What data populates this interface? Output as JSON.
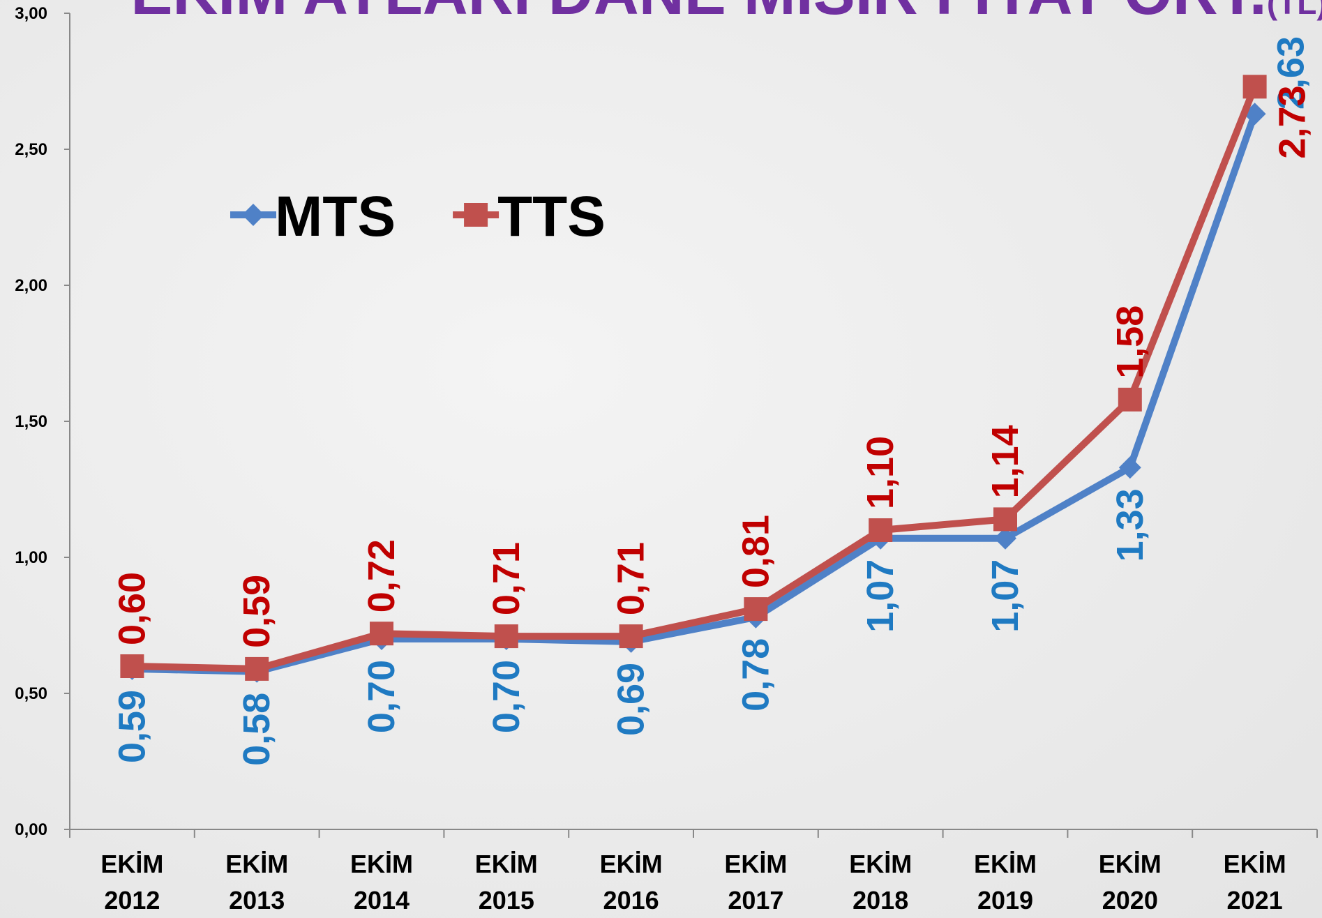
{
  "chart_data": {
    "type": "line",
    "title": "EKİM AYLARI DANE MISIR FİYAT ORT.",
    "title_unit": "(TL)",
    "categories": [
      "EKİM 2012",
      "EKİM 2013",
      "EKİM 2014",
      "EKİM 2015",
      "EKİM 2016",
      "EKİM 2017",
      "EKİM 2018",
      "EKİM 2019",
      "EKİM 2020",
      "EKİM 2021"
    ],
    "series": [
      {
        "name": "MTS",
        "color": "#4f81c7",
        "label_color": "#1f7ac2",
        "marker": "diamond",
        "values": [
          0.59,
          0.58,
          0.7,
          0.7,
          0.69,
          0.78,
          1.07,
          1.07,
          1.33,
          2.63
        ],
        "value_labels": [
          "0,59",
          "0,58",
          "0,70",
          "0,70",
          "0,69",
          "0,78",
          "1,07",
          "1,07",
          "1,33",
          "2,63"
        ]
      },
      {
        "name": "TTS",
        "color": "#c0504d",
        "label_color": "#c00000",
        "marker": "square",
        "values": [
          0.6,
          0.59,
          0.72,
          0.71,
          0.71,
          0.81,
          1.1,
          1.14,
          1.58,
          2.73
        ],
        "value_labels": [
          "0,60",
          "0,59",
          "0,72",
          "0,71",
          "0,71",
          "0,81",
          "1,10",
          "1,14",
          "1,58",
          "2,73"
        ]
      }
    ],
    "ylim": [
      0,
      3
    ],
    "yticks": [
      {
        "value": 0,
        "label": "0,00"
      },
      {
        "value": 0.5,
        "label": "0,50"
      },
      {
        "value": 1,
        "label": "1,00"
      },
      {
        "value": 1.5,
        "label": "1,50"
      },
      {
        "value": 2,
        "label": "2,00"
      },
      {
        "value": 2.5,
        "label": "2,50"
      },
      {
        "value": 3,
        "label": "3,00"
      }
    ],
    "legend": "upper left",
    "title_color": "#7030a0"
  }
}
